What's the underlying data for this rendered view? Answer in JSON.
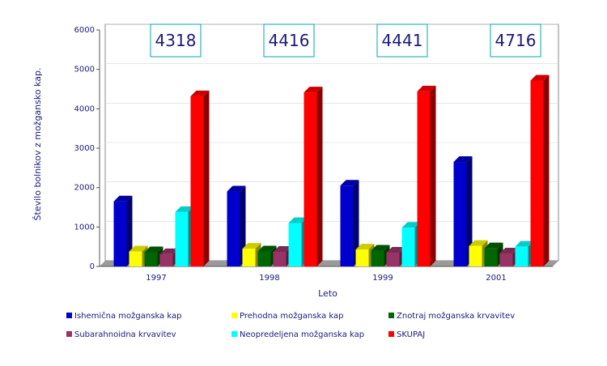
{
  "chart_data": {
    "type": "bar",
    "title": "",
    "xlabel": "Leto",
    "ylabel": "Število bolnikov z možgansko kap.",
    "ylim": [
      0,
      6000
    ],
    "yticks": [
      "0",
      "1000",
      "2000",
      "3000",
      "4000",
      "5000",
      "6000"
    ],
    "categories": [
      "1997",
      "1998",
      "1999",
      "2001"
    ],
    "series": [
      {
        "name": "Ishemična možganska kap",
        "color": "#0000cc",
        "values": [
          1650,
          1900,
          2050,
          2650
        ]
      },
      {
        "name": "Prehodna možganska kap",
        "color": "#ffff00",
        "values": [
          380,
          450,
          430,
          520
        ]
      },
      {
        "name": "Znotraj možganska krvavitev",
        "color": "#006600",
        "values": [
          360,
          380,
          400,
          460
        ]
      },
      {
        "name": "Subarahnoidna krvavitev",
        "color": "#993366",
        "values": [
          310,
          370,
          350,
          330
        ]
      },
      {
        "name": "Neopredeljena možganska kap",
        "color": "#00ffff",
        "values": [
          1380,
          1100,
          980,
          500
        ]
      },
      {
        "name": "SKUPAJ",
        "color": "#ff0000",
        "values": [
          4318,
          4416,
          4441,
          4716
        ]
      }
    ],
    "totals": [
      "4318",
      "4416",
      "4441",
      "4716"
    ],
    "grid": true,
    "legend_position": "bottom"
  }
}
